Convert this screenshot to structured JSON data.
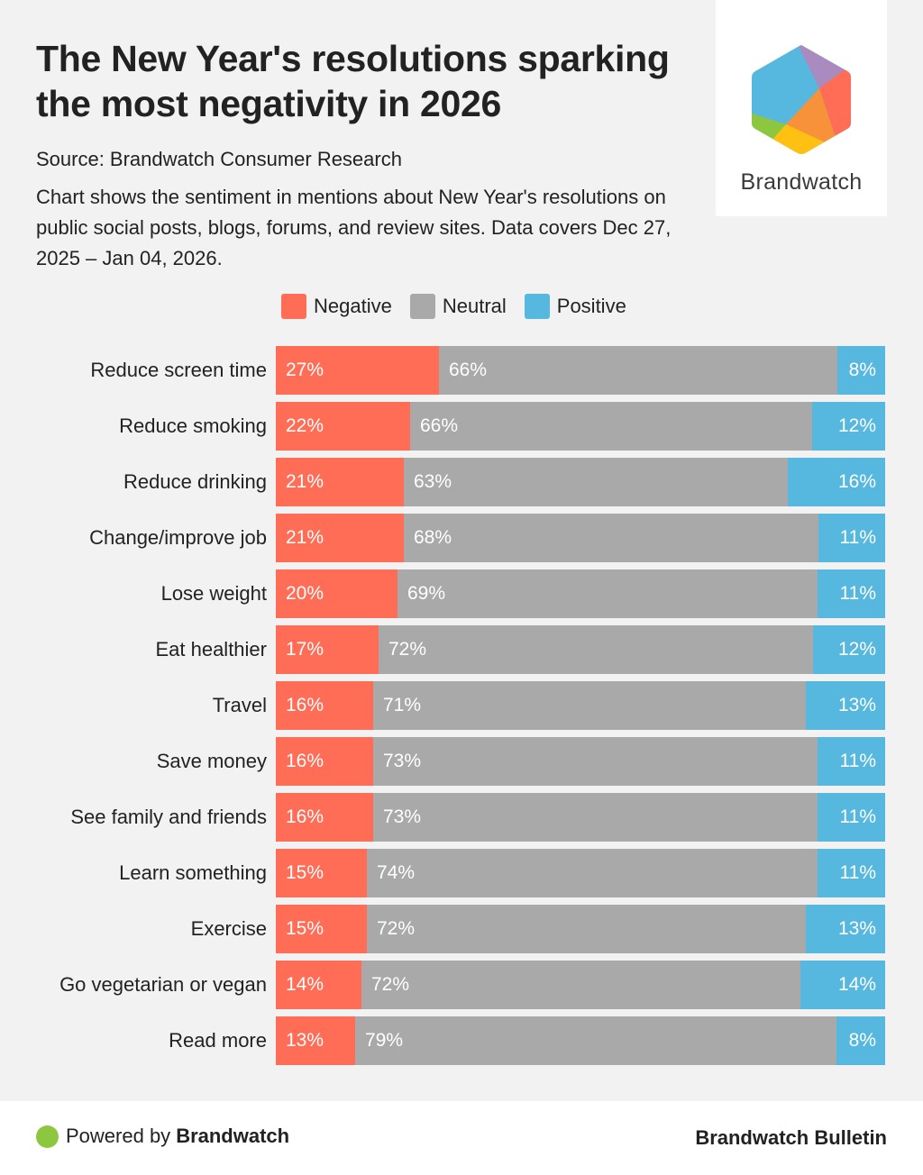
{
  "header": {
    "title": "The New Year's resolutions sparking the most negativity in 2026",
    "source": "Source: Brandwatch Consumer Research",
    "description": "Chart shows the sentiment in mentions about New Year's resolutions on public social posts, blogs, forums, and review sites. Data covers Dec 27, 2025 – Jan 04, 2026."
  },
  "logo": {
    "text": "Brandwatch",
    "icon": "brandwatch-hexagon-logo"
  },
  "colors": {
    "negative": "#ff6d56",
    "neutral": "#a9a9a9",
    "positive": "#56b7df"
  },
  "chart_data": {
    "type": "bar",
    "orientation": "horizontal",
    "stacked": true,
    "normalized": "100%",
    "title": "The New Year's resolutions sparking the most negativity in 2026",
    "xlabel": "",
    "ylabel": "",
    "legend": {
      "placement": "top",
      "entries": [
        "Negative",
        "Neutral",
        "Positive"
      ]
    },
    "grid": false,
    "categories": [
      "Reduce screen time",
      "Reduce smoking",
      "Reduce drinking",
      "Change/improve job",
      "Lose weight",
      "Eat healthier",
      "Travel",
      "Save money",
      "See family and friends",
      "Learn something",
      "Exercise",
      "Go vegetarian or vegan",
      "Read more"
    ],
    "series": [
      {
        "name": "Negative",
        "key": "negative",
        "values": [
          27,
          22,
          21,
          21,
          20,
          17,
          16,
          16,
          16,
          15,
          15,
          14,
          13
        ]
      },
      {
        "name": "Neutral",
        "key": "neutral",
        "values": [
          66,
          66,
          63,
          68,
          69,
          72,
          71,
          73,
          73,
          74,
          72,
          72,
          79
        ]
      },
      {
        "name": "Positive",
        "key": "positive",
        "values": [
          8,
          12,
          16,
          11,
          11,
          12,
          13,
          11,
          11,
          11,
          13,
          14,
          8
        ]
      }
    ],
    "value_suffix": "%"
  },
  "footer": {
    "powered_prefix": "Powered by",
    "powered_brand": "Brandwatch",
    "bulletin": "Brandwatch Bulletin"
  }
}
